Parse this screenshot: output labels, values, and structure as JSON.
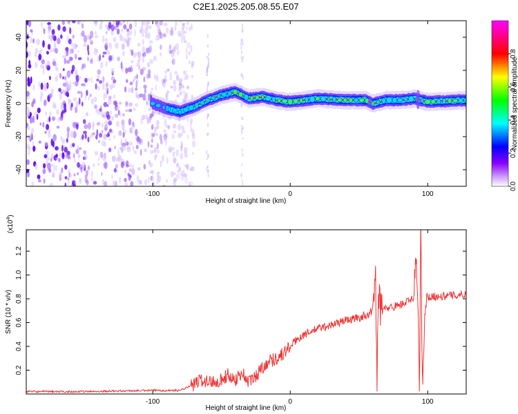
{
  "figure": {
    "title": "C2E1.2025.205.08.55.E07"
  },
  "chart_data": [
    {
      "type": "heatmap",
      "xlabel": "Height of straight line (km)",
      "ylabel": "Frequency (Hz)",
      "xlim": [
        -192,
        128
      ],
      "ylim": [
        -50,
        50
      ],
      "xticks": [
        -100,
        0,
        100
      ],
      "xtick_labels": [
        "-100",
        "0",
        "100"
      ],
      "yticks": [
        -40,
        -20,
        0,
        20,
        40
      ],
      "ytick_labels": [
        "-40",
        "-20",
        "0",
        "20",
        "40"
      ],
      "colorbar": {
        "label": "Normalized spectral amplitude",
        "range": [
          0,
          1
        ],
        "ticks": [
          0.0,
          0.2,
          0.4,
          0.6,
          0.8
        ],
        "tick_labels": [
          "0.0",
          "0.2",
          "0.4",
          "0.6",
          "0.8"
        ],
        "colormap": [
          "#ffffff",
          "#8800ff",
          "#0000ff",
          "#00ffff",
          "#00ff00",
          "#ffff00",
          "#ff0000",
          "#ff00ff"
        ]
      },
      "ridge": {
        "x": [
          -100,
          -90,
          -80,
          -70,
          -60,
          -50,
          -40,
          -30,
          -20,
          -10,
          0,
          10,
          20,
          40,
          55,
          60,
          70,
          80,
          90,
          95,
          100,
          128
        ],
        "y": [
          0,
          -3,
          -5,
          -2,
          2,
          5,
          7,
          3,
          4,
          2,
          1,
          2,
          3,
          2,
          2,
          0,
          2,
          2,
          3,
          2,
          1,
          2
        ]
      },
      "noise_region": [
        -192,
        -75
      ]
    },
    {
      "type": "line",
      "xlabel": "Height of straight line (km)",
      "ylabel": "SNR (10 * v/v)",
      "y_scale_label": "(x10",
      "y_scale_exponent": "4",
      "y_scale_close": ")",
      "xlim": [
        -192,
        128
      ],
      "ylim": [
        0,
        1.38
      ],
      "xticks": [
        -100,
        0,
        100
      ],
      "xtick_labels": [
        "-100",
        "0",
        "100"
      ],
      "yticks": [
        0.2,
        0.4,
        0.6,
        0.8,
        1.0,
        1.2
      ],
      "ytick_labels": [
        "0.2",
        "0.4",
        "0.6",
        "0.8",
        "1.0",
        "1.2"
      ],
      "color": "#ee3333",
      "series": [
        {
          "x": [
            -192,
            -150,
            -100,
            -80,
            -70,
            -65,
            -60,
            -50,
            -45,
            -40,
            -35,
            -30,
            -25,
            -20,
            -15,
            -10,
            -5,
            0,
            5,
            10,
            20,
            30,
            40,
            50,
            55,
            60,
            62,
            63,
            64,
            66,
            70,
            80,
            90,
            92,
            94,
            95,
            96,
            98,
            100,
            110,
            120,
            128
          ],
          "y": [
            0.02,
            0.02,
            0.03,
            0.03,
            0.08,
            0.12,
            0.1,
            0.12,
            0.16,
            0.12,
            0.18,
            0.1,
            0.15,
            0.23,
            0.28,
            0.3,
            0.34,
            0.4,
            0.46,
            0.5,
            0.55,
            0.58,
            0.62,
            0.64,
            0.66,
            0.7,
            1.1,
            0.05,
            0.95,
            0.7,
            0.72,
            0.75,
            0.8,
            1.2,
            0.08,
            1.38,
            0.06,
            0.8,
            0.82,
            0.82,
            0.83,
            0.84
          ]
        }
      ]
    }
  ]
}
